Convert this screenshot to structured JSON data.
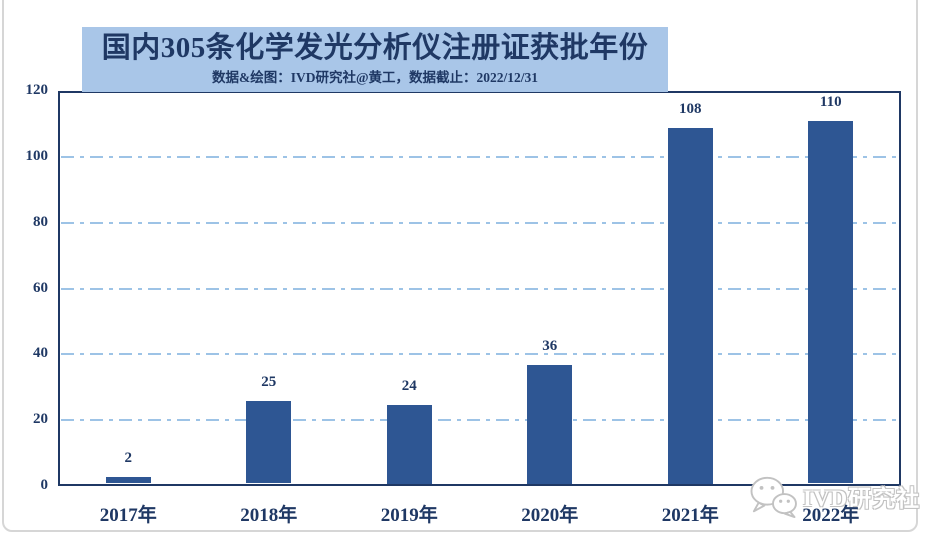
{
  "header": {
    "title": "国内305条化学发光分析仪注册证获批年份",
    "subtitle": "数据&绘图：IVD研究社@黄工，数据截止：2022/12/31"
  },
  "chart_data": {
    "type": "bar",
    "title": "国内305条化学发光分析仪注册证获批年份",
    "subtitle": "数据&绘图：IVD研究社@黄工，数据截止：2022/12/31",
    "categories": [
      "2017年",
      "2018年",
      "2019年",
      "2020年",
      "2021年",
      "2022年"
    ],
    "values": [
      2,
      25,
      24,
      36,
      108,
      110
    ],
    "xlabel": "",
    "ylabel": "",
    "ylim": [
      0,
      120
    ],
    "yticks": [
      0,
      20,
      40,
      60,
      80,
      100,
      120
    ],
    "grid": "horizontal dash-dot gridlines at each y tick (20-100)",
    "legend": "none",
    "data_labels_shown": true
  },
  "watermark": {
    "text": "IVD研究社",
    "icon": "wechat-icon"
  },
  "colors": {
    "bar": "#2e5693",
    "title_background": "#a9c6e8",
    "navy_text": "#1f3864",
    "gridline": "#9dc3e6",
    "plot_border": "#1f3864",
    "watermark_outline": "#c2c2c2",
    "frame_gray": "#d6d6d6"
  }
}
